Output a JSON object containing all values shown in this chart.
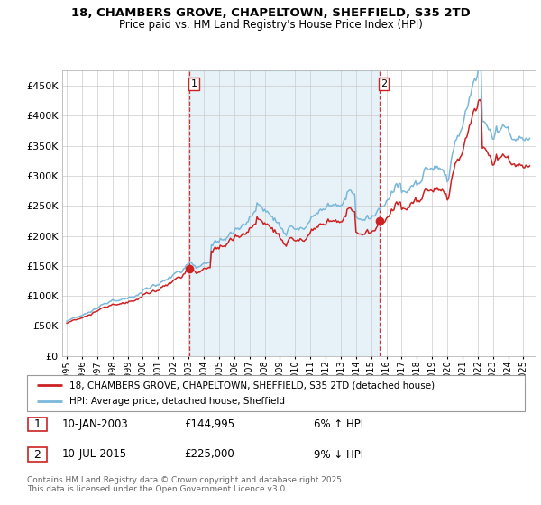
{
  "title": "18, CHAMBERS GROVE, CHAPELTOWN, SHEFFIELD, S35 2TD",
  "subtitle": "Price paid vs. HM Land Registry's House Price Index (HPI)",
  "legend_line1": "18, CHAMBERS GROVE, CHAPELTOWN, SHEFFIELD, S35 2TD (detached house)",
  "legend_line2": "HPI: Average price, detached house, Sheffield",
  "annotation1_date": "10-JAN-2003",
  "annotation1_price": "£144,995",
  "annotation1_hpi": "6% ↑ HPI",
  "annotation2_date": "10-JUL-2015",
  "annotation2_price": "£225,000",
  "annotation2_hpi": "9% ↓ HPI",
  "footer": "Contains HM Land Registry data © Crown copyright and database right 2025.\nThis data is licensed under the Open Government Licence v3.0.",
  "hpi_color": "#7ab8d9",
  "price_color": "#cc2222",
  "vline_color": "#cc2222",
  "marker_color": "#cc2222",
  "shade_color": "#ddeeff",
  "ylim": [
    0,
    475000
  ],
  "yticks": [
    0,
    50000,
    100000,
    150000,
    200000,
    250000,
    300000,
    350000,
    400000,
    450000
  ],
  "ytick_labels": [
    "£0",
    "£50K",
    "£100K",
    "£150K",
    "£200K",
    "£250K",
    "£300K",
    "£350K",
    "£400K",
    "£450K"
  ],
  "purchase1_x": 2003.04,
  "purchase1_y": 144995,
  "purchase2_x": 2015.53,
  "purchase2_y": 225000,
  "xlim_left": 1994.7,
  "xlim_right": 2025.8,
  "background_color": "#ffffff",
  "grid_color": "#cccccc"
}
